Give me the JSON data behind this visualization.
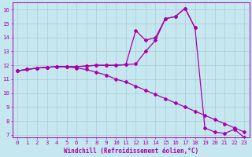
{
  "xlabel": "Windchill (Refroidissement éolien,°C)",
  "background_color": "#c5e8f0",
  "line_color": "#aa00aa",
  "grid_color": "#b0c8d0",
  "xlim_min": -0.5,
  "xlim_max": 23.5,
  "ylim_min": 6.8,
  "ylim_max": 16.5,
  "yticks": [
    7,
    8,
    9,
    10,
    11,
    12,
    13,
    14,
    15,
    16
  ],
  "xticks": [
    0,
    1,
    2,
    3,
    4,
    5,
    6,
    7,
    8,
    9,
    10,
    11,
    12,
    13,
    14,
    15,
    16,
    17,
    18,
    19,
    20,
    21,
    22,
    23
  ],
  "x_full": [
    0,
    1,
    2,
    3,
    4,
    5,
    6,
    7,
    8,
    9,
    10,
    11,
    12,
    13,
    14,
    15,
    16,
    17,
    18,
    19,
    20,
    21,
    22,
    23
  ],
  "line_down": [
    11.6,
    11.7,
    11.8,
    11.85,
    11.9,
    11.9,
    11.8,
    11.7,
    11.5,
    11.3,
    11.0,
    10.8,
    10.5,
    10.2,
    9.9,
    9.6,
    9.3,
    9.0,
    8.7,
    8.4,
    8.1,
    7.8,
    7.5,
    7.2
  ],
  "x_up_full": [
    0,
    1,
    2,
    3,
    4,
    5,
    6,
    7,
    8,
    9,
    10,
    11,
    12,
    13,
    14,
    15,
    16,
    17,
    18,
    19,
    20,
    21,
    22,
    23
  ],
  "line_up_full": [
    11.6,
    11.7,
    11.8,
    11.85,
    11.9,
    11.9,
    11.9,
    11.95,
    12.0,
    12.0,
    12.0,
    12.05,
    12.1,
    13.0,
    13.8,
    15.35,
    15.5,
    16.1,
    14.7,
    7.5,
    7.2,
    7.1,
    7.4,
    6.8
  ],
  "x_up_short": [
    0,
    1,
    2,
    3,
    4,
    5,
    6,
    7,
    8,
    9,
    10,
    11,
    12,
    13,
    14,
    15,
    16,
    17,
    18
  ],
  "line_up_short": [
    11.6,
    11.7,
    11.8,
    11.85,
    11.9,
    11.9,
    11.9,
    11.95,
    12.0,
    12.0,
    12.0,
    12.05,
    14.5,
    13.8,
    14.0,
    15.35,
    15.5,
    16.1,
    14.7
  ],
  "xlabel_fontsize": 5.5,
  "tick_fontsize": 5.2
}
